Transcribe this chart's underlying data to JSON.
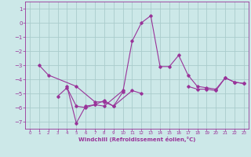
{
  "xlabel": "Windchill (Refroidissement éolien,°C)",
  "bg_color": "#cce8e8",
  "grid_color": "#aacccc",
  "line_color": "#993399",
  "xlim": [
    -0.5,
    23.5
  ],
  "ylim": [
    -7.5,
    1.5
  ],
  "yticks": [
    1,
    0,
    -1,
    -2,
    -3,
    -4,
    -5,
    -6,
    -7
  ],
  "xticks": [
    0,
    1,
    2,
    3,
    4,
    5,
    6,
    7,
    8,
    9,
    10,
    11,
    12,
    13,
    14,
    15,
    16,
    17,
    18,
    19,
    20,
    21,
    22,
    23
  ],
  "series": [
    [
      1,
      -3.0,
      2,
      -3.7,
      3,
      null,
      4,
      null,
      5,
      -4.5,
      6,
      null,
      7,
      -5.6,
      8,
      -5.6,
      9,
      -5.9,
      10,
      null,
      11,
      -4.8,
      12,
      -5.0,
      13,
      null,
      14,
      null,
      15,
      null,
      16,
      null,
      17,
      null,
      18,
      null,
      19,
      null,
      20,
      null,
      21,
      null,
      22,
      null,
      23,
      null
    ],
    [
      1,
      null,
      2,
      null,
      3,
      -5.2,
      4,
      -4.6,
      5,
      -5.9,
      6,
      -6.0,
      7,
      -5.8,
      8,
      -5.9,
      9,
      null,
      10,
      -4.8,
      11,
      null,
      12,
      null,
      13,
      null,
      14,
      null,
      15,
      null,
      16,
      null,
      17,
      null,
      18,
      null,
      19,
      null,
      20,
      null,
      21,
      null,
      22,
      null,
      23,
      null
    ],
    [
      1,
      null,
      2,
      null,
      3,
      null,
      4,
      -4.5,
      5,
      -7.1,
      6,
      -5.9,
      7,
      -5.8,
      8,
      -5.5,
      9,
      -5.9,
      10,
      -4.9,
      11,
      -1.3,
      12,
      0.0,
      13,
      0.5,
      14,
      -3.1,
      15,
      -3.1,
      16,
      -2.3,
      17,
      -3.7,
      18,
      -4.5,
      19,
      -4.6,
      20,
      -4.7,
      21,
      -3.9,
      22,
      -4.2,
      23,
      -4.3
    ],
    [
      1,
      null,
      2,
      null,
      3,
      null,
      4,
      null,
      5,
      null,
      6,
      null,
      7,
      null,
      8,
      null,
      9,
      null,
      10,
      null,
      11,
      null,
      12,
      null,
      13,
      null,
      14,
      null,
      15,
      null,
      16,
      null,
      17,
      -4.5,
      18,
      -4.7,
      19,
      -4.7,
      20,
      -4.8,
      21,
      -3.9,
      22,
      -4.2,
      23,
      -4.3
    ]
  ],
  "series2": [
    {
      "x": [
        1,
        2,
        5,
        7,
        8,
        9,
        11,
        12
      ],
      "y": [
        -3.0,
        -3.7,
        -4.5,
        -5.6,
        -5.6,
        -5.9,
        -4.8,
        -5.0
      ]
    },
    {
      "x": [
        3,
        4,
        5,
        6,
        7,
        8,
        10
      ],
      "y": [
        -5.2,
        -4.6,
        -5.9,
        -6.0,
        -5.8,
        -5.9,
        -4.8
      ]
    },
    {
      "x": [
        4,
        5,
        6,
        7,
        8,
        9,
        10,
        11,
        12,
        13,
        14,
        15,
        16,
        17,
        18,
        19,
        20,
        21,
        22,
        23
      ],
      "y": [
        -4.5,
        -7.1,
        -5.9,
        -5.8,
        -5.5,
        -5.9,
        -4.9,
        -1.3,
        0.0,
        0.5,
        -3.1,
        -3.1,
        -2.3,
        -3.7,
        -4.5,
        -4.6,
        -4.7,
        -3.9,
        -4.2,
        -4.3
      ]
    },
    {
      "x": [
        17,
        18,
        19,
        20,
        21,
        22,
        23
      ],
      "y": [
        -4.5,
        -4.7,
        -4.7,
        -4.8,
        -3.9,
        -4.2,
        -4.3
      ]
    }
  ]
}
